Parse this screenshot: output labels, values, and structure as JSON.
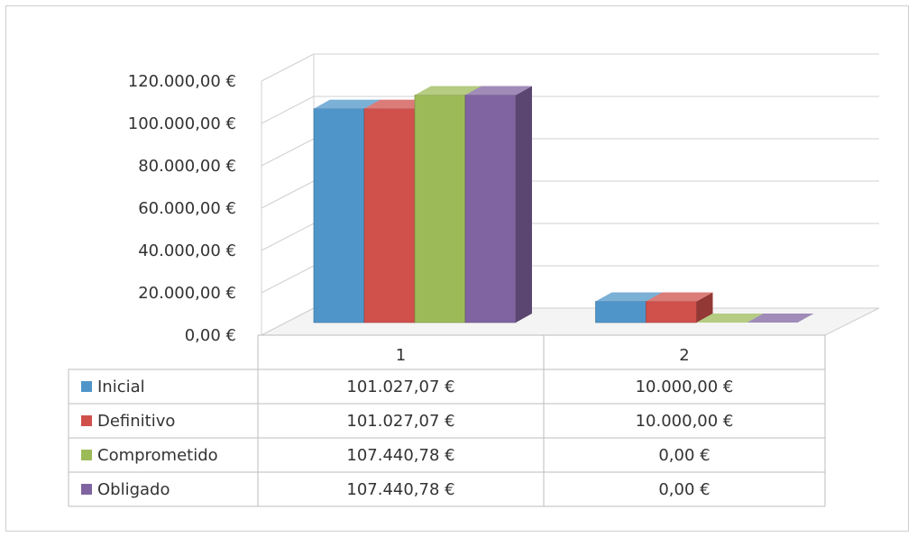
{
  "chart_data": {
    "type": "bar",
    "categories": [
      "1",
      "2"
    ],
    "series": [
      {
        "name": "Inicial",
        "values": [
          101027.07,
          10000.0
        ],
        "value_labels": [
          "101.027,07 €",
          "10.000,00 €"
        ],
        "color": "#4f95c9"
      },
      {
        "name": "Definitivo",
        "values": [
          101027.07,
          10000.0
        ],
        "value_labels": [
          "101.027,07 €",
          "10.000,00 €"
        ],
        "color": "#d0504c"
      },
      {
        "name": "Comprometido",
        "values": [
          107440.78,
          0.0
        ],
        "value_labels": [
          "107.440,78 €",
          "0,00 €"
        ],
        "color": "#9cbb58"
      },
      {
        "name": "Obligado",
        "values": [
          107440.78,
          0.0
        ],
        "value_labels": [
          "107.440,78 €",
          "0,00 €"
        ],
        "color": "#8064a1"
      }
    ],
    "y_ticks": [
      "0,00 €",
      "20.000,00 €",
      "40.000,00 €",
      "60.000,00 €",
      "80.000,00 €",
      "100.000,00 €",
      "120.000,00 €"
    ],
    "ylim": [
      0,
      120000
    ],
    "grid": true,
    "legend": "data-table",
    "title": "",
    "xlabel": "",
    "ylabel": ""
  }
}
